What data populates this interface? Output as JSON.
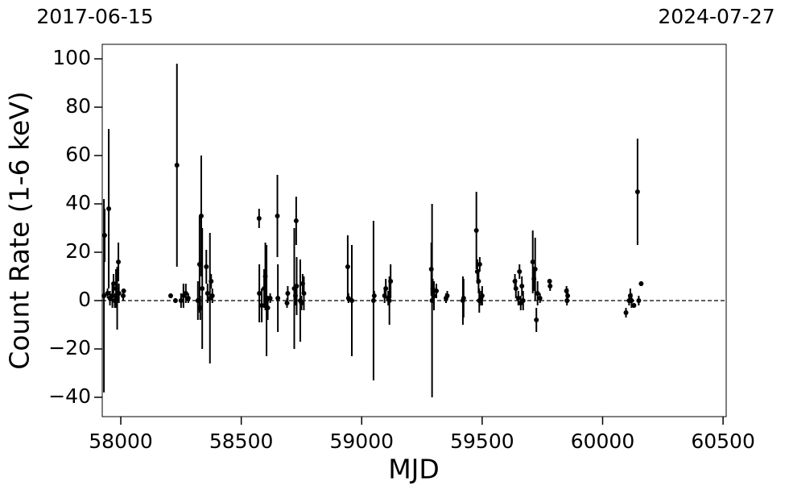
{
  "chart_data": {
    "type": "errorbar",
    "xlabel": "MJD",
    "ylabel": "Count Rate (1-6 keV)",
    "annotations": [
      "2017-06-15",
      "2024-07-27"
    ],
    "xlim": [
      57923,
      60513
    ],
    "ylim": [
      -48,
      106
    ],
    "xticks": [
      58000,
      58500,
      59000,
      59500,
      60000,
      60500
    ],
    "yticks": [
      {
        "value": -40,
        "label": "−40"
      },
      {
        "value": -20,
        "label": "−20"
      },
      0,
      20,
      40,
      60,
      80,
      100
    ],
    "reference_line": 0,
    "series": [
      {
        "color": "#000000",
        "x": [
          57930,
          57933,
          57950,
          57945,
          57955,
          57965,
          57970,
          57975,
          57980,
          57985,
          57990,
          57992,
          58010,
          58012,
          58207,
          58227,
          58233,
          58250,
          58260,
          58270,
          58280,
          58327,
          58334,
          58338,
          58355,
          58360,
          58370,
          58375,
          58380,
          58320,
          58330,
          58574,
          58575,
          58585,
          58595,
          58600,
          58605,
          58610,
          58620,
          58650,
          58652,
          58690,
          58693,
          58728,
          58720,
          58725,
          58730,
          58745,
          58755,
          58760,
          58750,
          58942,
          58945,
          58959,
          59049,
          59052,
          59095,
          59100,
          59110,
          59120,
          59115,
          59289,
          59292,
          59295,
          59310,
          59300,
          59350,
          59355,
          59420,
          59423,
          59476,
          59480,
          59485,
          59490,
          59495,
          59488,
          59500,
          59636,
          59640,
          59650,
          59655,
          59665,
          59670,
          59660,
          59710,
          59715,
          59720,
          59725,
          59730,
          59740,
          59780,
          59782,
          59850,
          59852,
          59855,
          60097,
          60110,
          60115,
          60120,
          60130,
          60145,
          60150,
          60160
        ],
        "values": [
          2,
          27,
          38,
          3,
          1,
          2,
          7,
          0,
          5,
          1,
          16,
          3,
          2,
          4,
          2,
          0,
          56,
          0,
          2,
          3,
          1,
          15,
          35,
          5,
          14,
          3,
          1,
          8,
          2,
          0,
          -3,
          34,
          3,
          -2,
          5,
          10,
          0,
          -3,
          1,
          35,
          1,
          -1,
          3,
          33,
          5,
          2,
          6,
          0,
          7,
          3,
          -1,
          14,
          1,
          0,
          0,
          2,
          2,
          5,
          1,
          8,
          0,
          13,
          0,
          5,
          4,
          2,
          1,
          2,
          0,
          1,
          29,
          12,
          8,
          15,
          1,
          0,
          2,
          8,
          5,
          1,
          12,
          6,
          0,
          -1,
          16,
          9,
          13,
          -8,
          3,
          1,
          8,
          6,
          4,
          0,
          2,
          -5,
          0,
          2,
          0,
          -2,
          45,
          0,
          7
        ],
        "errors": [
          40,
          11,
          33,
          2,
          3,
          5,
          4,
          3,
          8,
          13,
          8,
          4,
          2,
          1,
          1,
          1,
          42,
          3,
          5,
          4,
          2,
          20,
          25,
          25,
          7,
          4,
          27,
          3,
          3,
          8,
          5,
          4,
          12,
          7,
          8,
          14,
          23,
          5,
          2,
          17,
          14,
          2,
          3,
          10,
          25,
          4,
          12,
          17,
          4,
          7,
          3,
          13,
          2,
          23,
          33,
          2,
          3,
          4,
          3,
          7,
          10,
          11,
          40,
          4,
          3,
          6,
          2,
          2,
          10,
          8,
          16,
          5,
          5,
          3,
          3,
          5,
          4,
          3,
          4,
          3,
          3,
          4,
          4,
          3,
          13,
          5,
          13,
          5,
          5,
          2,
          1,
          2,
          2,
          2,
          3,
          2,
          2,
          3,
          3,
          1,
          22,
          2,
          1
        ]
      }
    ]
  }
}
